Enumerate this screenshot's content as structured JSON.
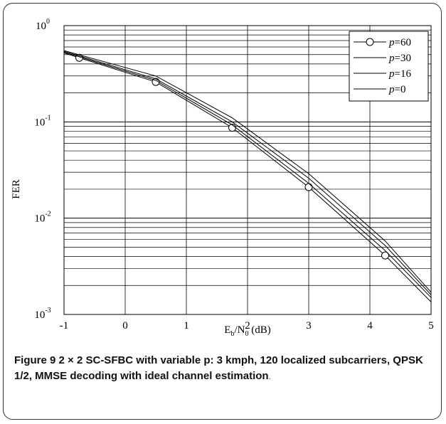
{
  "chart_data": {
    "type": "line",
    "title": "",
    "xlabel": {
      "main": "E",
      "sub1": "b",
      "mid": "/N",
      "sub2": "0",
      "unit": " (dB)"
    },
    "ylabel": "FER",
    "xlim": [
      -1,
      5
    ],
    "ylim": [
      0.001,
      1
    ],
    "yscale": "log",
    "x_ticks": [
      "-1",
      "0",
      "1",
      "2",
      "3",
      "4",
      "5"
    ],
    "y_ticks": [
      {
        "base": "10",
        "exp": "-3"
      },
      {
        "base": "10",
        "exp": "-2"
      },
      {
        "base": "10",
        "exp": "-1"
      },
      {
        "base": "10",
        "exp": "0"
      }
    ],
    "grid": true,
    "legend": {
      "position": "top-right"
    },
    "series": [
      {
        "name": "p=60",
        "label_var": "p",
        "label_val": "=60",
        "marker": "circle",
        "x": [
          -1,
          0.5,
          1.75,
          3,
          4.25,
          5
        ],
        "y": [
          0.52,
          0.26,
          0.087,
          0.021,
          0.0041,
          0.00135
        ],
        "markers_x": [
          -0.75,
          0.5,
          1.75,
          3,
          4.25
        ]
      },
      {
        "name": "p=30",
        "label_var": "p",
        "label_val": "=30",
        "marker": "none",
        "x": [
          -1,
          0.5,
          1.75,
          3,
          4.25,
          5
        ],
        "y": [
          0.53,
          0.27,
          0.093,
          0.023,
          0.0046,
          0.0015
        ]
      },
      {
        "name": "p=16",
        "label_var": "p",
        "label_val": "=16",
        "marker": "none",
        "x": [
          -1,
          0.5,
          1.75,
          3,
          4.25,
          5
        ],
        "y": [
          0.54,
          0.28,
          0.1,
          0.026,
          0.0052,
          0.0016
        ]
      },
      {
        "name": "p=0",
        "label_var": "p",
        "label_val": "=0",
        "marker": "none",
        "x": [
          -1,
          0.5,
          1.75,
          3,
          4.25,
          5
        ],
        "y": [
          0.55,
          0.3,
          0.11,
          0.029,
          0.0058,
          0.0017
        ]
      }
    ]
  },
  "caption": {
    "label": "Figure 9",
    "text": "2 × 2 SC-SFBC with variable p: 3 kmph, 120 localized subcarriers, QPSK 1/2, MMSE decoding with ideal channel estimation",
    "end": "."
  }
}
